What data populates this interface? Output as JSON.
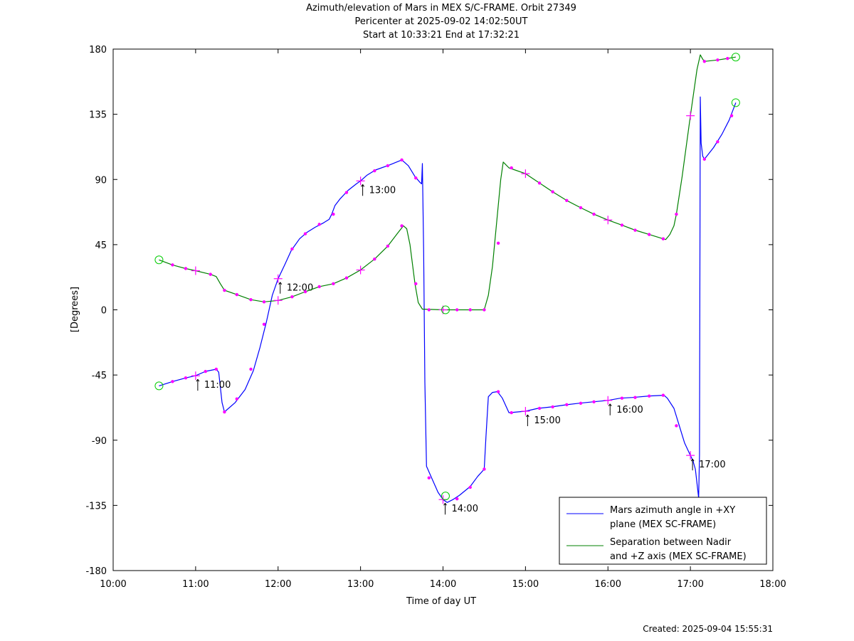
{
  "chart_data": {
    "type": "line",
    "title_lines": [
      "Azimuth/elevation of Mars in MEX S/C-FRAME.  Orbit 27349",
      "Pericenter at 2025-09-02 14:02:50UT",
      "Start at 10:33:21 End at 17:32:21"
    ],
    "xlabel": "Time of day UT",
    "ylabel": "[Degrees]",
    "x_unit": "hours of day UT",
    "xlim": [
      10,
      18
    ],
    "ylim": [
      -180,
      180
    ],
    "x_ticks": [
      10,
      11,
      12,
      13,
      14,
      15,
      16,
      17,
      18
    ],
    "x_tick_labels": [
      "10:00",
      "11:00",
      "12:00",
      "13:00",
      "14:00",
      "15:00",
      "16:00",
      "17:00",
      "18:00"
    ],
    "y_ticks": [
      -180,
      -135,
      -90,
      -45,
      0,
      45,
      90,
      135,
      180
    ],
    "y_tick_labels": [
      "-180",
      "-135",
      "-90",
      "-45",
      "0",
      "45",
      "90",
      "135",
      "180"
    ],
    "grid": false,
    "legend_position": "bottom-right",
    "series": [
      {
        "name": "Mars azimuth angle in +XY plane (MEX SC-FRAME)",
        "legend_lines": [
          "Mars azimuth angle in +XY",
          "plane (MEX SC-FRAME)"
        ],
        "color": "#0000ff",
        "points": [
          [
            10.556,
            -52.5
          ],
          [
            10.72,
            -49.5
          ],
          [
            10.88,
            -47
          ],
          [
            11.0,
            -45.5
          ],
          [
            11.12,
            -42.5
          ],
          [
            11.25,
            -41
          ],
          [
            11.28,
            -43
          ],
          [
            11.32,
            -64
          ],
          [
            11.35,
            -70.5
          ],
          [
            11.48,
            -64
          ],
          [
            11.6,
            -55
          ],
          [
            11.7,
            -42
          ],
          [
            11.78,
            -26
          ],
          [
            11.86,
            -8
          ],
          [
            11.93,
            10
          ],
          [
            12.0,
            21.5
          ],
          [
            12.08,
            31
          ],
          [
            12.16,
            41
          ],
          [
            12.26,
            49
          ],
          [
            12.35,
            53.5
          ],
          [
            12.45,
            57
          ],
          [
            12.55,
            60
          ],
          [
            12.62,
            62.5
          ],
          [
            12.65,
            66
          ],
          [
            12.69,
            72
          ],
          [
            12.75,
            76.5
          ],
          [
            12.85,
            82.5
          ],
          [
            12.95,
            87
          ],
          [
            13.0,
            89
          ],
          [
            13.08,
            93
          ],
          [
            13.18,
            96.5
          ],
          [
            13.35,
            100
          ],
          [
            13.5,
            103.5
          ],
          [
            13.58,
            99.5
          ],
          [
            13.66,
            92
          ],
          [
            13.72,
            88
          ],
          [
            13.74,
            87
          ],
          [
            13.75,
            101
          ],
          [
            13.765,
            40
          ],
          [
            13.78,
            -50
          ],
          [
            13.8,
            -108
          ],
          [
            13.87,
            -117
          ],
          [
            13.94,
            -126
          ],
          [
            14.0,
            -131
          ],
          [
            14.05,
            -133
          ],
          [
            14.12,
            -131
          ],
          [
            14.2,
            -128
          ],
          [
            14.33,
            -122
          ],
          [
            14.42,
            -115
          ],
          [
            14.5,
            -110
          ],
          [
            14.52,
            -88
          ],
          [
            14.55,
            -60
          ],
          [
            14.6,
            -57
          ],
          [
            14.66,
            -56.5
          ],
          [
            14.72,
            -61
          ],
          [
            14.8,
            -71
          ],
          [
            15.0,
            -70
          ],
          [
            15.15,
            -68
          ],
          [
            15.32,
            -67
          ],
          [
            15.5,
            -65.5
          ],
          [
            15.65,
            -64.5
          ],
          [
            15.82,
            -63.5
          ],
          [
            16.0,
            -62.5
          ],
          [
            16.15,
            -61
          ],
          [
            16.3,
            -60.5
          ],
          [
            16.5,
            -59.5
          ],
          [
            16.68,
            -59
          ],
          [
            16.72,
            -61
          ],
          [
            16.8,
            -68
          ],
          [
            16.86,
            -79
          ],
          [
            16.93,
            -92
          ],
          [
            17.0,
            -100.5
          ],
          [
            17.03,
            -104
          ],
          [
            17.06,
            -110
          ],
          [
            17.09,
            -125
          ],
          [
            17.1,
            -130
          ],
          [
            17.11,
            -100
          ],
          [
            17.12,
            147
          ],
          [
            17.13,
            115
          ],
          [
            17.15,
            106
          ],
          [
            17.17,
            104
          ],
          [
            17.28,
            112
          ],
          [
            17.38,
            121
          ],
          [
            17.47,
            131
          ],
          [
            17.55,
            143
          ]
        ],
        "start_point": [
          10.556,
          -52.5
        ],
        "end_point": [
          17.55,
          143
        ],
        "pericenter_point": [
          14.03,
          -128.5
        ],
        "markers": [
          [
            10.72,
            -49.5
          ],
          [
            10.88,
            -47
          ],
          [
            11.12,
            -42.5
          ],
          [
            11.25,
            -41
          ],
          [
            11.35,
            -70.5
          ],
          [
            11.5,
            -61.5
          ],
          [
            11.67,
            -41
          ],
          [
            11.83,
            -10
          ],
          [
            12.17,
            42
          ],
          [
            12.33,
            52.5
          ],
          [
            12.5,
            59
          ],
          [
            12.67,
            66
          ],
          [
            12.83,
            81
          ],
          [
            13.17,
            96
          ],
          [
            13.33,
            99.5
          ],
          [
            13.5,
            103.5
          ],
          [
            13.67,
            91
          ],
          [
            13.83,
            -116
          ],
          [
            14.17,
            -130.5
          ],
          [
            14.33,
            -122.5
          ],
          [
            14.5,
            -110
          ],
          [
            14.67,
            -56.5
          ],
          [
            14.83,
            -71
          ],
          [
            15.17,
            -68
          ],
          [
            15.33,
            -67
          ],
          [
            15.5,
            -65.5
          ],
          [
            15.67,
            -64.5
          ],
          [
            15.83,
            -63.5
          ],
          [
            16.17,
            -61
          ],
          [
            16.33,
            -60.5
          ],
          [
            16.5,
            -59.5
          ],
          [
            16.67,
            -59
          ],
          [
            16.83,
            -80
          ],
          [
            17.17,
            104
          ],
          [
            17.33,
            116
          ],
          [
            17.5,
            134
          ]
        ],
        "hour_marks": [
          {
            "x": 11.0,
            "y": -45.5,
            "label": "11:00"
          },
          {
            "x": 12.0,
            "y": 21.5,
            "label": "12:00"
          },
          {
            "x": 13.0,
            "y": 89,
            "label": "13:00"
          },
          {
            "x": 14.0,
            "y": -131,
            "label": "14:00"
          },
          {
            "x": 15.0,
            "y": -70,
            "label": "15:00"
          },
          {
            "x": 16.0,
            "y": -62.5,
            "label": "16:00"
          },
          {
            "x": 17.0,
            "y": -100.5,
            "label": "17:00"
          }
        ]
      },
      {
        "name": "Separation between Nadir and +Z axis (MEX SC-FRAME)",
        "legend_lines": [
          "Separation between Nadir",
          "and +Z axis (MEX SC-FRAME)"
        ],
        "color": "#008000",
        "points": [
          [
            10.556,
            34.5
          ],
          [
            10.72,
            31
          ],
          [
            10.88,
            28.5
          ],
          [
            11.0,
            27
          ],
          [
            11.18,
            24.5
          ],
          [
            11.25,
            23
          ],
          [
            11.3,
            18
          ],
          [
            11.35,
            13.5
          ],
          [
            11.5,
            10.5
          ],
          [
            11.67,
            7
          ],
          [
            11.83,
            5.5
          ],
          [
            12.0,
            6.5
          ],
          [
            12.17,
            9
          ],
          [
            12.33,
            12.5
          ],
          [
            12.5,
            16
          ],
          [
            12.67,
            18
          ],
          [
            12.83,
            22
          ],
          [
            13.0,
            27.5
          ],
          [
            13.17,
            35
          ],
          [
            13.33,
            44
          ],
          [
            13.45,
            53
          ],
          [
            13.52,
            58
          ],
          [
            13.56,
            56
          ],
          [
            13.6,
            45
          ],
          [
            13.66,
            18
          ],
          [
            13.7,
            5
          ],
          [
            13.75,
            0.5
          ],
          [
            14.0,
            0
          ],
          [
            14.5,
            0
          ],
          [
            14.55,
            10
          ],
          [
            14.6,
            30
          ],
          [
            14.65,
            60
          ],
          [
            14.7,
            90
          ],
          [
            14.73,
            102
          ],
          [
            14.8,
            98
          ],
          [
            15.0,
            94
          ],
          [
            15.17,
            87.5
          ],
          [
            15.33,
            81.5
          ],
          [
            15.5,
            75.5
          ],
          [
            15.67,
            70.5
          ],
          [
            15.83,
            66
          ],
          [
            16.0,
            62
          ],
          [
            16.17,
            58.5
          ],
          [
            16.33,
            55
          ],
          [
            16.5,
            52
          ],
          [
            16.67,
            49
          ],
          [
            16.7,
            48.5
          ],
          [
            16.75,
            52
          ],
          [
            16.8,
            58
          ],
          [
            16.83,
            66
          ],
          [
            16.9,
            92
          ],
          [
            17.0,
            134
          ],
          [
            17.08,
            166
          ],
          [
            17.12,
            176
          ],
          [
            17.15,
            173
          ],
          [
            17.17,
            171.5
          ],
          [
            17.33,
            172.5
          ],
          [
            17.45,
            173.5
          ],
          [
            17.55,
            174.5
          ]
        ],
        "start_point": [
          10.556,
          34.5
        ],
        "end_point": [
          17.55,
          174.5
        ],
        "pericenter_point": [
          14.03,
          0
        ],
        "markers": [
          [
            10.72,
            31
          ],
          [
            10.88,
            28.5
          ],
          [
            11.18,
            24.5
          ],
          [
            11.35,
            13.5
          ],
          [
            11.5,
            10.5
          ],
          [
            11.67,
            7
          ],
          [
            11.83,
            5.5
          ],
          [
            12.17,
            9
          ],
          [
            12.33,
            12.5
          ],
          [
            12.5,
            16
          ],
          [
            12.67,
            18
          ],
          [
            12.83,
            22
          ],
          [
            13.17,
            35
          ],
          [
            13.33,
            44
          ],
          [
            13.5,
            58
          ],
          [
            13.67,
            18
          ],
          [
            13.83,
            0
          ],
          [
            14.17,
            0
          ],
          [
            14.33,
            0
          ],
          [
            14.5,
            0
          ],
          [
            14.67,
            46
          ],
          [
            14.83,
            98
          ],
          [
            15.17,
            87.5
          ],
          [
            15.33,
            81.5
          ],
          [
            15.5,
            75.5
          ],
          [
            15.67,
            70.5
          ],
          [
            15.83,
            66
          ],
          [
            16.17,
            58.5
          ],
          [
            16.33,
            55
          ],
          [
            16.5,
            52
          ],
          [
            16.67,
            49
          ],
          [
            16.83,
            66
          ],
          [
            17.17,
            171.5
          ],
          [
            17.33,
            172.5
          ],
          [
            17.45,
            173.5
          ]
        ],
        "hour_marks": [
          {
            "x": 11.0,
            "y": 27,
            "label": ""
          },
          {
            "x": 12.0,
            "y": 6.5,
            "label": ""
          },
          {
            "x": 13.0,
            "y": 27.5,
            "label": ""
          },
          {
            "x": 14.0,
            "y": 0,
            "label": ""
          },
          {
            "x": 15.0,
            "y": 94,
            "label": ""
          },
          {
            "x": 16.0,
            "y": 62,
            "label": ""
          },
          {
            "x": 17.0,
            "y": 134,
            "label": ""
          }
        ]
      }
    ]
  },
  "footer": {
    "created": "Created: 2025-09-04 15:55:31"
  }
}
